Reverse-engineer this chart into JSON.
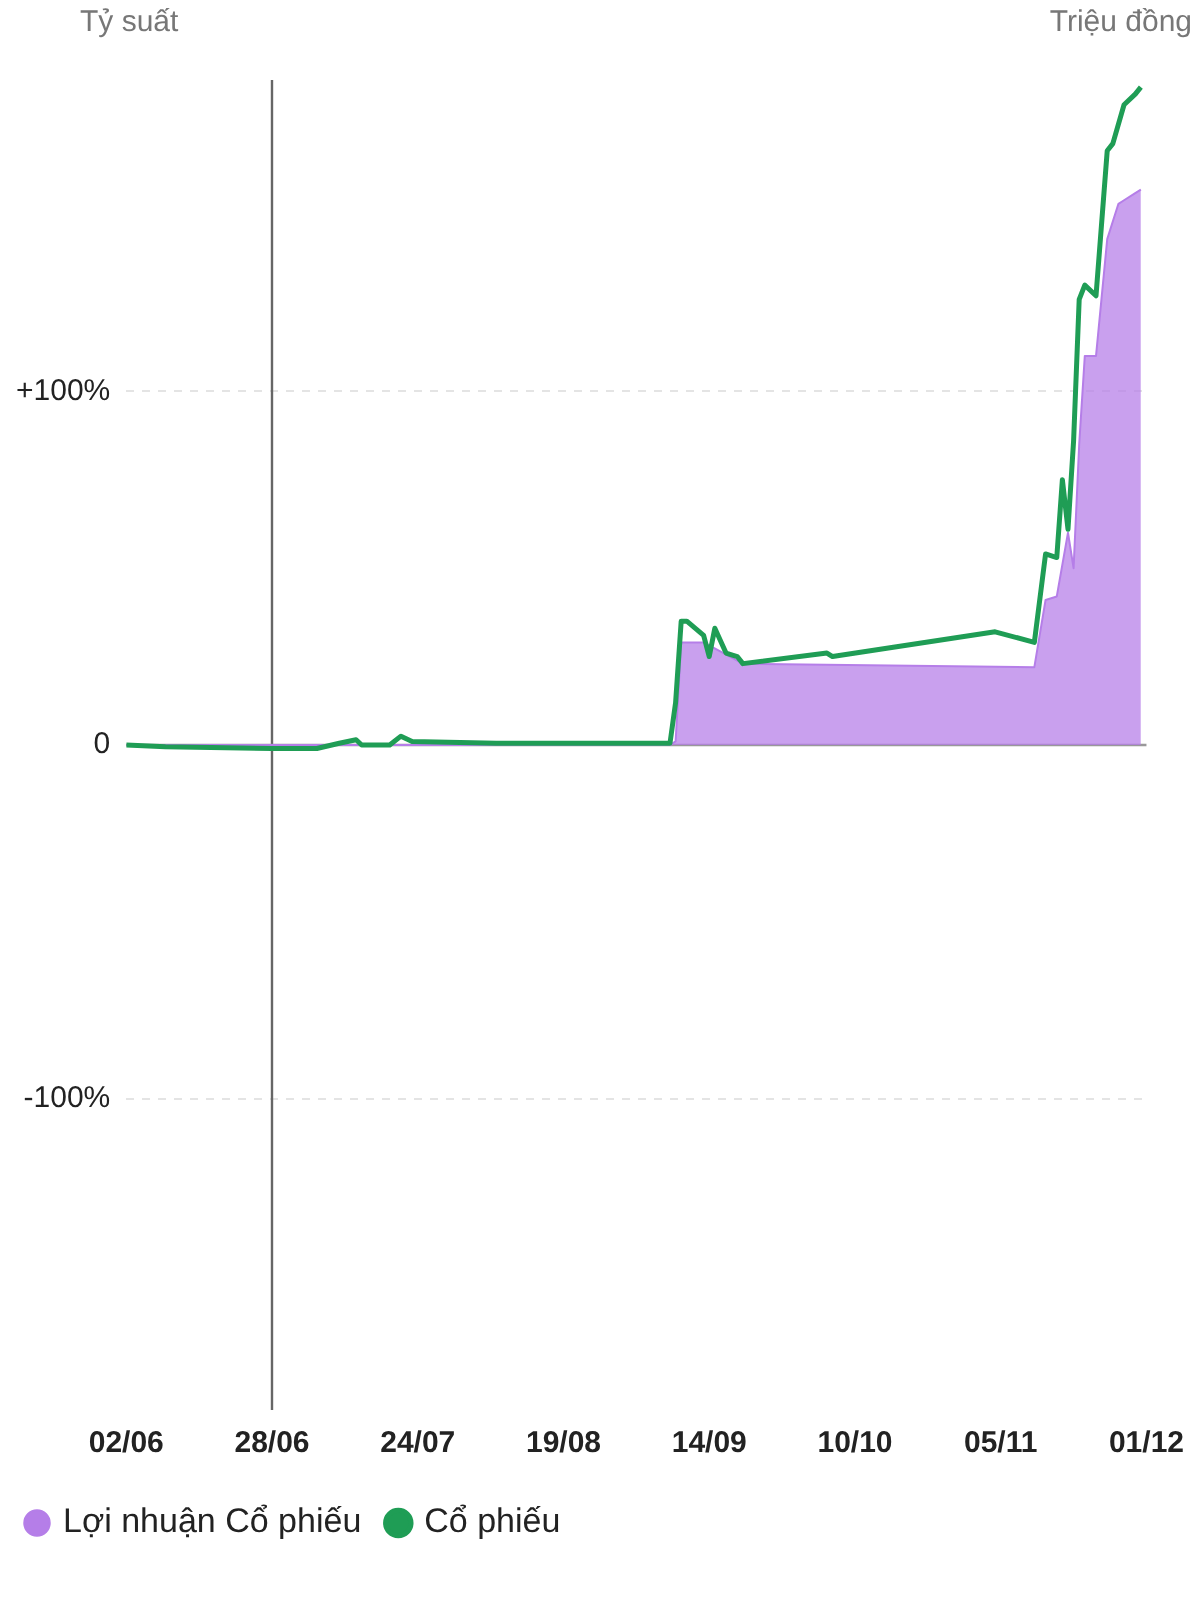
{
  "chart_data": {
    "type": "line",
    "ylabel": "Tỷ suất",
    "y2label": "Triệu đồng",
    "xlim": [
      "--06-02",
      "--12-01"
    ],
    "xticks": [
      {
        "value": "--06-02",
        "label": "02/06"
      },
      {
        "value": "--06-28",
        "label": "28/06"
      },
      {
        "value": "--07-24",
        "label": "24/07"
      },
      {
        "value": "--08-19",
        "label": "19/08"
      },
      {
        "value": "--09-14",
        "label": "14/09"
      },
      {
        "value": "--10-10",
        "label": "10/10"
      },
      {
        "value": "--11-05",
        "label": "05/11"
      },
      {
        "value": "--12-01",
        "label": "01/12"
      }
    ],
    "ylim": [
      -188,
      188
    ],
    "yticks": [
      {
        "value": -100,
        "label": "-100%"
      },
      0,
      {
        "value": 100,
        "label": "+100%"
      }
    ],
    "grid": "y",
    "legend": "bottom left",
    "marker": "none",
    "line_style": "solid",
    "ref_lines": [
      {
        "axis": "x",
        "value": "--06-28",
        "color": "#666666"
      },
      {
        "axis": "y",
        "value": 0,
        "color": "#999999"
      }
    ],
    "series": [
      {
        "name": "Lợi nhuận Cổ phiếu",
        "type": "area",
        "color": "#b57ee8",
        "x": [
          "--06-02",
          "--09-07",
          "--09-08",
          "--09-09",
          "--09-10",
          "--09-13",
          "--09-20",
          "--11-11",
          "--11-13",
          "--11-15",
          "--11-17",
          "--11-18",
          "--11-19",
          "--11-20",
          "--11-22",
          "--11-24",
          "--11-26",
          "--11-27",
          "--11-29",
          "--11-30"
        ],
        "values": [
          0,
          0,
          1,
          29,
          29,
          29,
          23,
          22,
          41,
          42,
          60,
          50,
          85,
          110,
          110,
          143,
          153,
          154,
          156,
          157
        ]
      },
      {
        "name": "Cổ phiếu",
        "color": "#1f9d55",
        "x": [
          "--06-02",
          "--06-09",
          "--06-28",
          "--07-06",
          "--07-10",
          "--07-13",
          "--07-14",
          "--07-19",
          "--07-21",
          "--07-23",
          "--08-07",
          "--09-07",
          "--09-08",
          "--09-09",
          "--09-10",
          "--09-13",
          "--09-14",
          "--09-15",
          "--09-17",
          "--09-19",
          "--09-20",
          "--10-05",
          "--10-06",
          "--11-04",
          "--11-11",
          "--11-13",
          "--11-15",
          "--11-16",
          "--11-17",
          "--11-18",
          "--11-19",
          "--11-20",
          "--11-22",
          "--11-24",
          "--11-25",
          "--11-27",
          "--11-29",
          "--11-30"
        ],
        "values": [
          0,
          -0.5,
          -1,
          -1,
          0.5,
          1.5,
          0,
          0,
          2.5,
          1,
          0.5,
          0.5,
          12,
          35,
          35,
          31,
          25,
          33,
          26,
          25,
          23,
          26,
          25,
          32,
          29,
          54,
          53,
          75,
          61,
          86,
          126,
          130,
          127,
          168,
          170,
          181,
          184,
          186
        ]
      }
    ]
  }
}
